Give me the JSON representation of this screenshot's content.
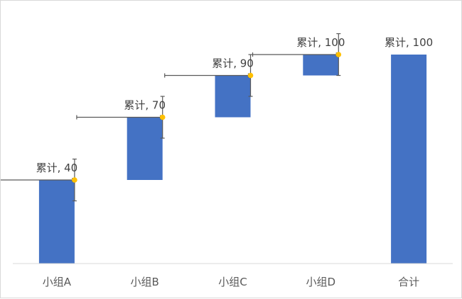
{
  "chart_data": {
    "type": "bar",
    "subtype": "waterfall",
    "categories": [
      "小组A",
      "小组B",
      "小组C",
      "小组D",
      "合计"
    ],
    "increments": [
      40,
      30,
      20,
      10
    ],
    "cumulative": [
      40,
      70,
      90,
      100,
      100
    ],
    "series": [
      {
        "values": [
          40,
          30,
          20,
          10,
          100
        ]
      }
    ],
    "data_labels": [
      "累计, 40",
      "累计, 70",
      "累计, 90",
      "累计, 100",
      "累计, 100"
    ],
    "ylim": [
      0,
      120
    ],
    "grid": false,
    "legend": "none",
    "error_bar_y": 10,
    "title": "",
    "xlabel": "",
    "ylabel": ""
  },
  "colors": {
    "bar": "#4472C4",
    "marker": "#FFC000",
    "error_bar": "#595959",
    "axis": "#d9d9d9",
    "text": "#595959"
  }
}
